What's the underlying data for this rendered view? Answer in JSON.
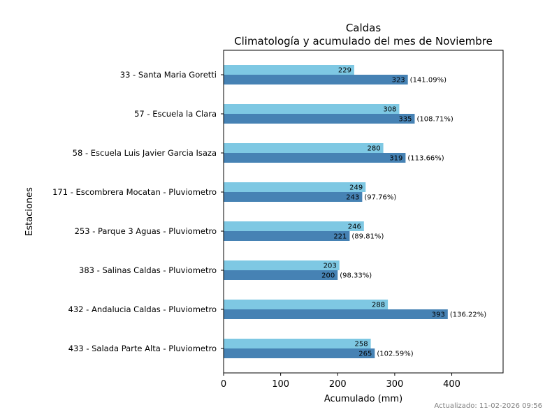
{
  "chart_data": {
    "type": "bar",
    "orientation": "horizontal",
    "title": "Caldas",
    "subtitle": "Climatología y acumulado del mes de Noviembre",
    "xlabel": "Acumulado (mm)",
    "ylabel": "Estaciones",
    "xlim": [
      0,
      490
    ],
    "xticks": [
      "0",
      "100",
      "200",
      "300",
      "400"
    ],
    "grid": false,
    "categories": [
      "33 - Santa Maria Goretti",
      "57 - Escuela la Clara",
      "58 - Escuela Luis Javier Garcia Isaza",
      "171 - Escombrera Mocatan - Pluviometro",
      "253 - Parque 3 Aguas - Pluviometro",
      "383 - Salinas Caldas - Pluviometro",
      "432 - Andalucia Caldas - Pluviometro",
      "433 - Salada Parte Alta - Pluviometro"
    ],
    "series": [
      {
        "color": "#7ec8e3",
        "values": [
          229,
          308,
          280,
          249,
          246,
          203,
          288,
          258
        ]
      },
      {
        "color": "#4682b4",
        "values": [
          323,
          335,
          319,
          243,
          221,
          200,
          393,
          265
        ]
      }
    ],
    "percent_labels": [
      "(141.09%)",
      "(108.71%)",
      "(113.66%)",
      "(97.76%)",
      "(89.81%)",
      "(98.33%)",
      "(136.22%)",
      "(102.59%)"
    ]
  },
  "footer": {
    "updated": "Actualizado: 11-02-2026 09:56"
  }
}
